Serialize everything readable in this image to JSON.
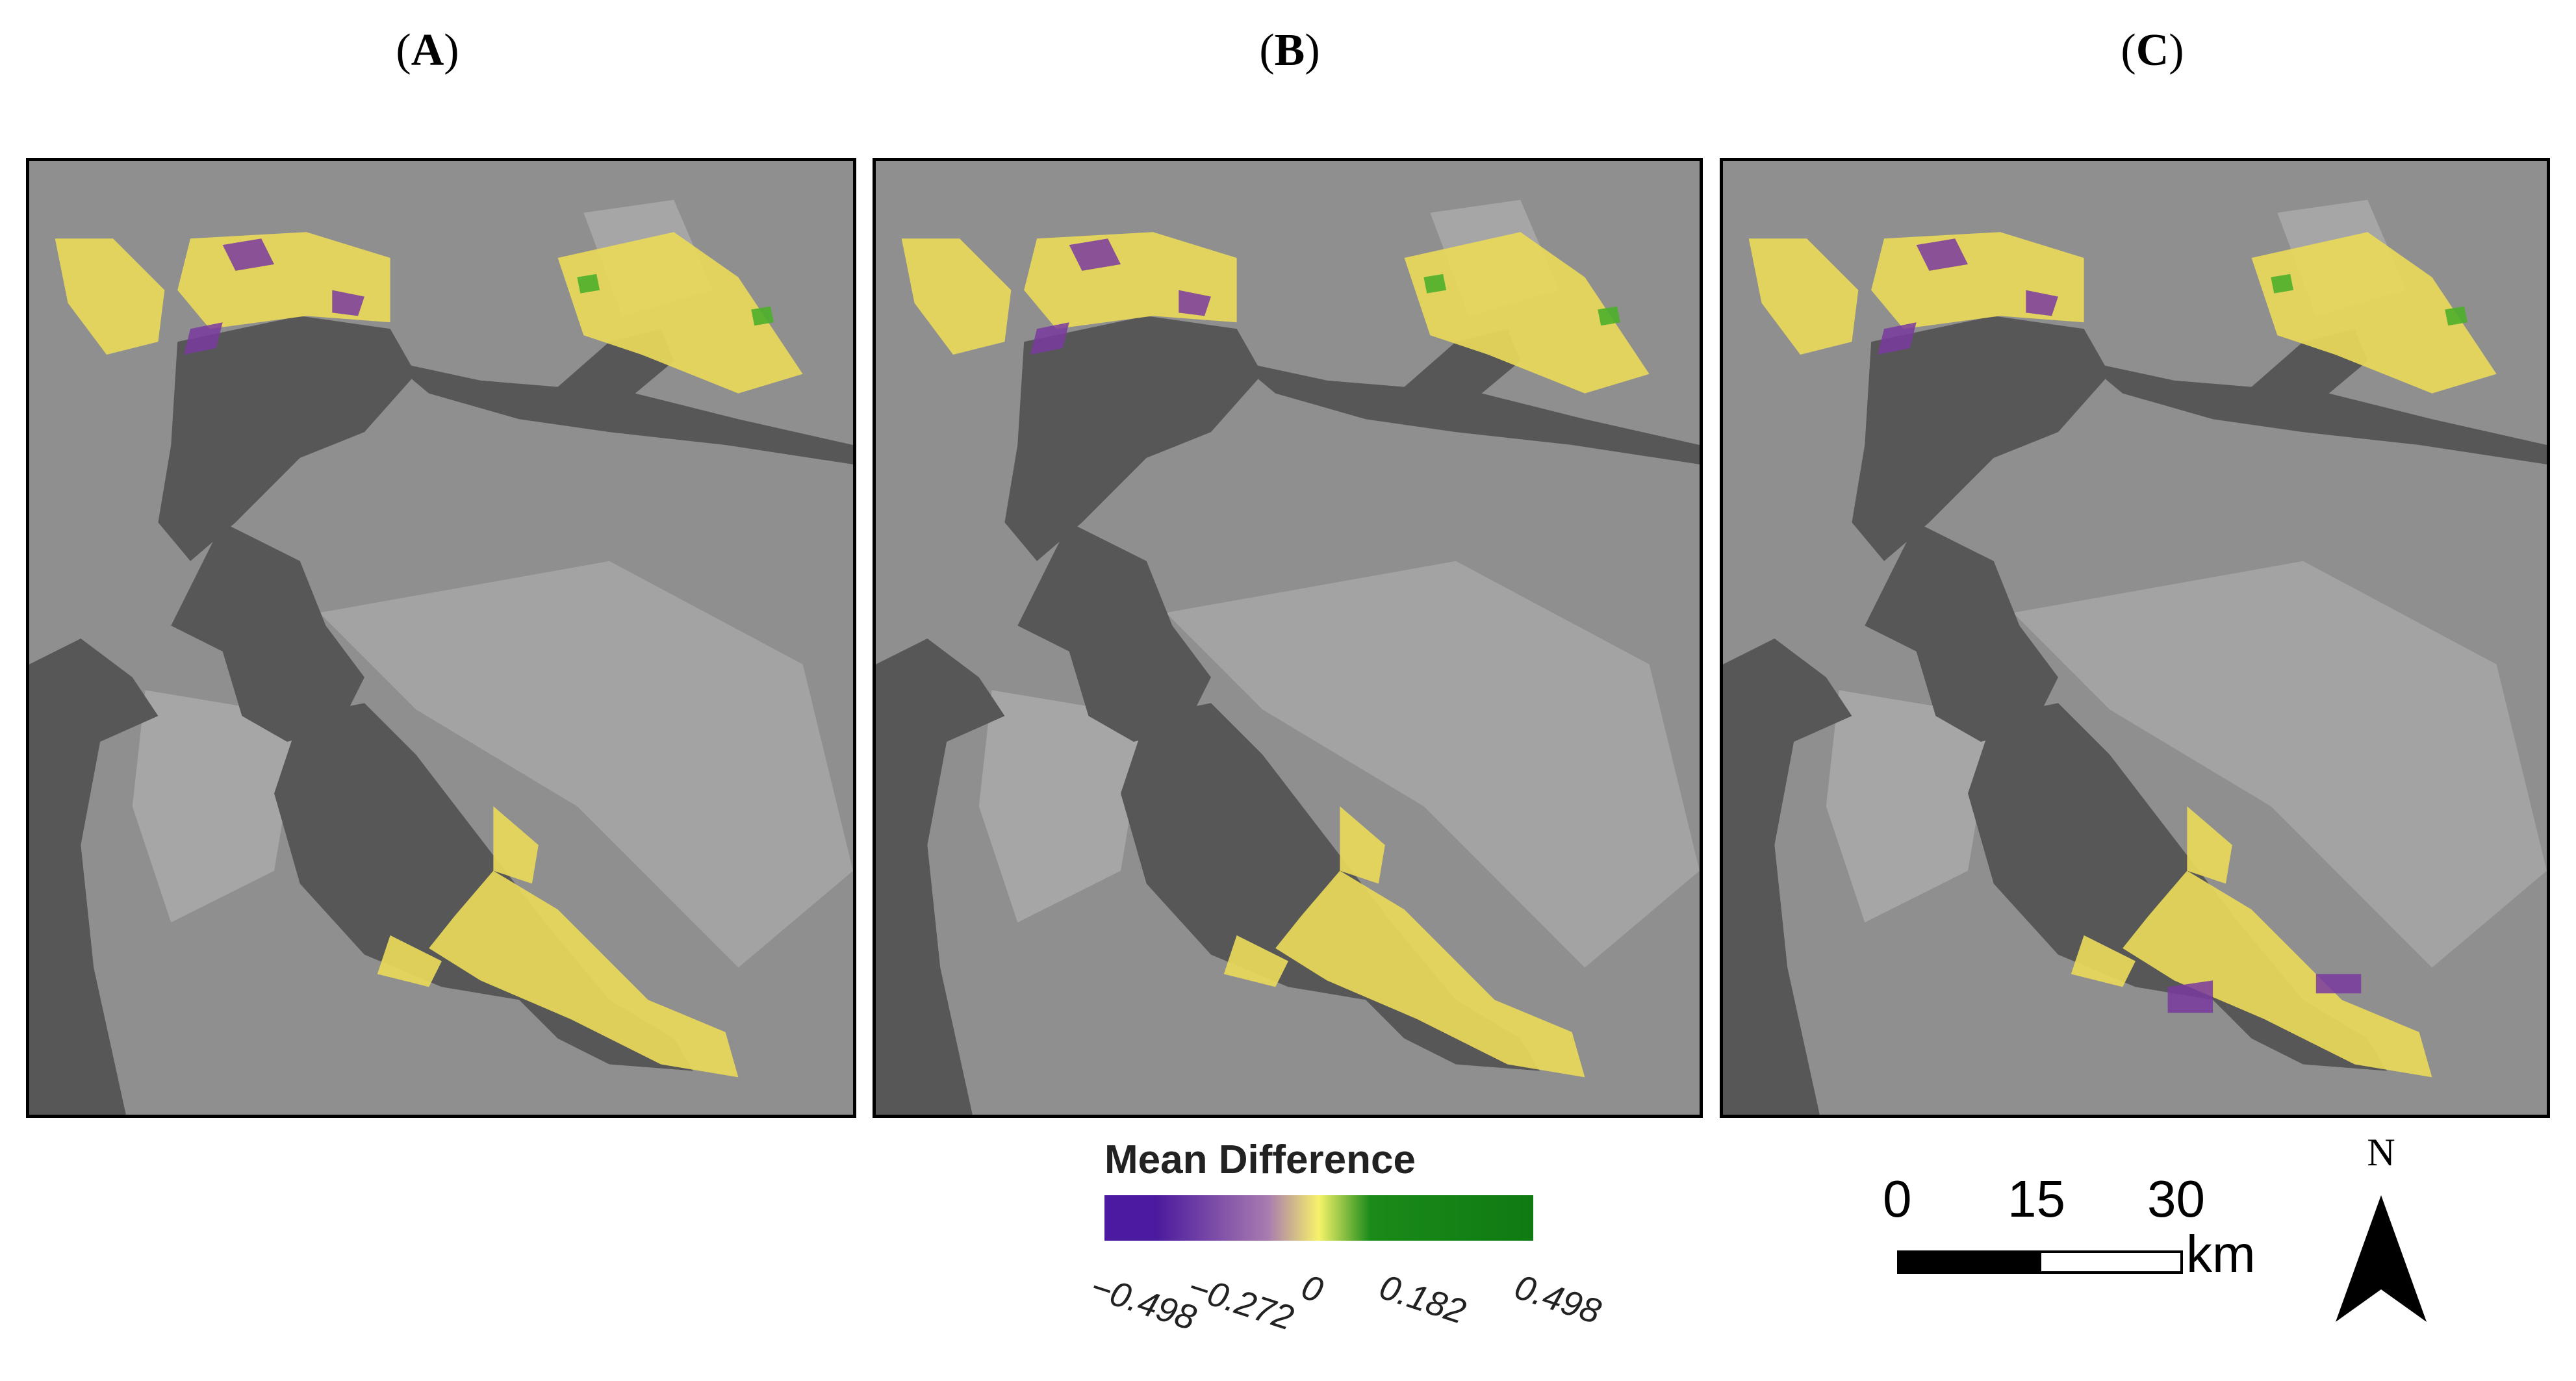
{
  "panels": [
    {
      "label": "A"
    },
    {
      "label": "B"
    },
    {
      "label": "C"
    }
  ],
  "legend": {
    "title": "Mean Difference",
    "ticks": [
      "−0.498",
      "−0.272",
      "0",
      "0.182",
      "0.498"
    ],
    "colors": {
      "min": "#4b1a9e",
      "low": "#a87ab0",
      "mid": "#f6f36a",
      "high": "#1a8a1a",
      "max": "#0f7a12"
    }
  },
  "scale_bar": {
    "labels": [
      "0",
      "15",
      "30"
    ],
    "unit": "km"
  },
  "north_arrow": {
    "letter": "N",
    "icon": "north-arrow-icon"
  },
  "map_colors": {
    "water": "#575757",
    "land": "#8f8f8f",
    "urban": "#b5b5b5",
    "wetland_yellow": "#e8d95a",
    "wetland_purple": "#7a3aa0",
    "wetland_green": "#4caf2a"
  }
}
